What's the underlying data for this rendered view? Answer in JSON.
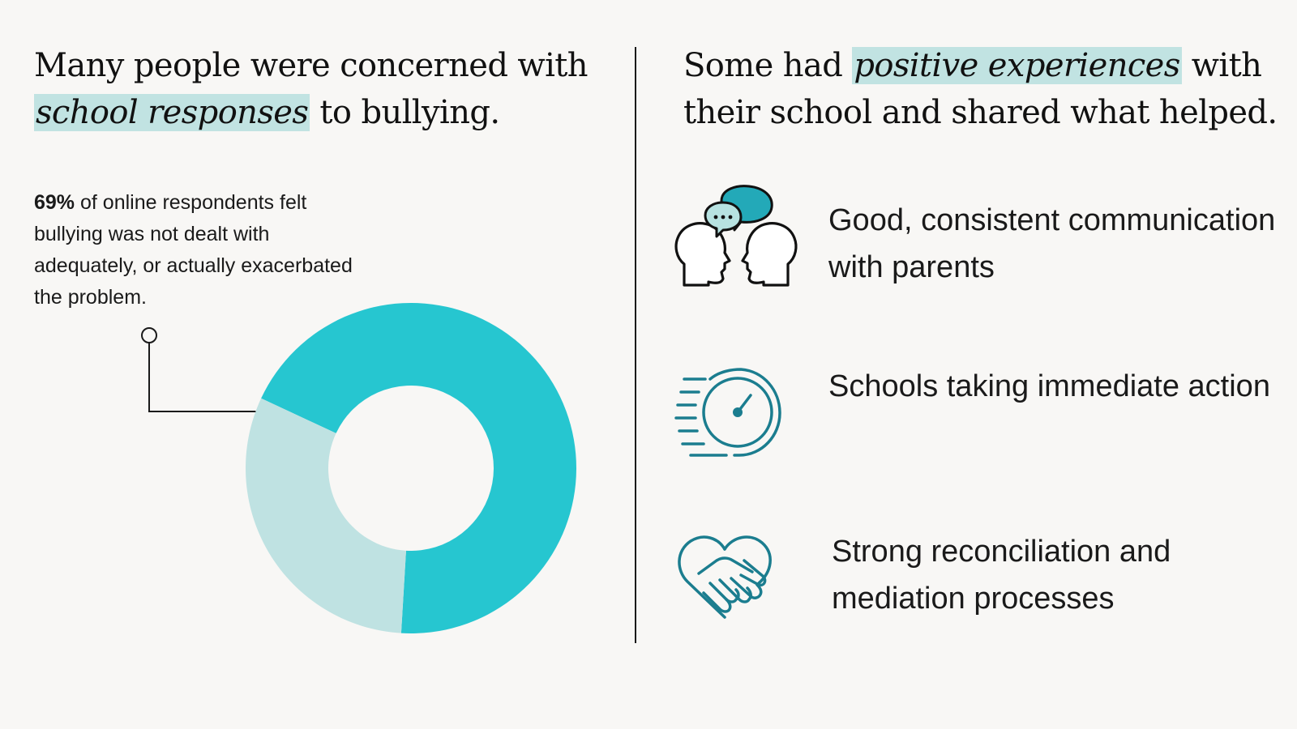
{
  "left": {
    "heading_pre": "Many people were concerned with ",
    "heading_highlight": "school responses",
    "heading_post": " to bullying.",
    "stat_bold": "69%",
    "stat_rest": " of online respondents felt bullying was not dealt with adequately, or actually exacerbated the problem."
  },
  "right": {
    "heading_pre": "Some had ",
    "heading_highlight": "positive experiences",
    "heading_post": " with their school and shared what helped.",
    "items": [
      {
        "label": "Good, consistent communication with parents",
        "icon": "talking-heads-icon"
      },
      {
        "label": "Schools taking immediate action",
        "icon": "speedometer-icon"
      },
      {
        "label": "Strong reconciliation and mediation processes",
        "icon": "handshake-heart-icon"
      }
    ]
  },
  "colors": {
    "background": "#f8f7f5",
    "accent": "#26c6d0",
    "accent_light": "#bfe2e2",
    "highlight": "#c1e3e2",
    "icon_teal": "#1b7d8f",
    "icon_bubble_dark": "#23a9b8",
    "icon_bubble_light": "#b7e2e1"
  },
  "chart_data": {
    "type": "pie",
    "style": "donut",
    "series": [
      {
        "value": 69,
        "color": "#26c6d0"
      },
      {
        "value": 31,
        "color": "#bfe2e2"
      }
    ],
    "callout_target_index": 0
  }
}
